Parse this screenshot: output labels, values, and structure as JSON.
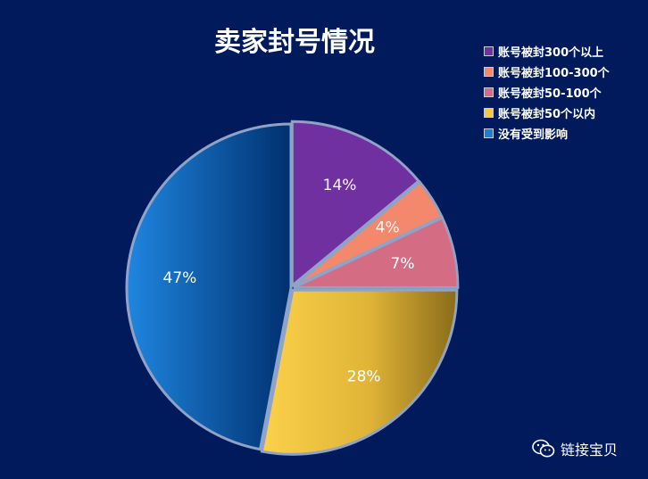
{
  "chart_data": {
    "type": "pie",
    "title": "卖家封号情况",
    "legend_position": "top-right",
    "slices": [
      {
        "label": "账号被封300个以上",
        "value": 14,
        "display": "14%",
        "color": "#7030a0"
      },
      {
        "label": "账号被封100-300个",
        "value": 4,
        "display": "4%",
        "color": "#f4886c"
      },
      {
        "label": "账号被封50-100个",
        "value": 7,
        "display": "7%",
        "color": "#d46c84"
      },
      {
        "label": "账号被封50个以内",
        "value": 28,
        "display": "28%",
        "color": "#f5c842"
      },
      {
        "label": "没有受到影响",
        "value": 47,
        "display": "47%",
        "color": "#1c7fd6"
      }
    ]
  },
  "watermark": {
    "text": "链接宝贝",
    "icon": "wechat-icon"
  }
}
